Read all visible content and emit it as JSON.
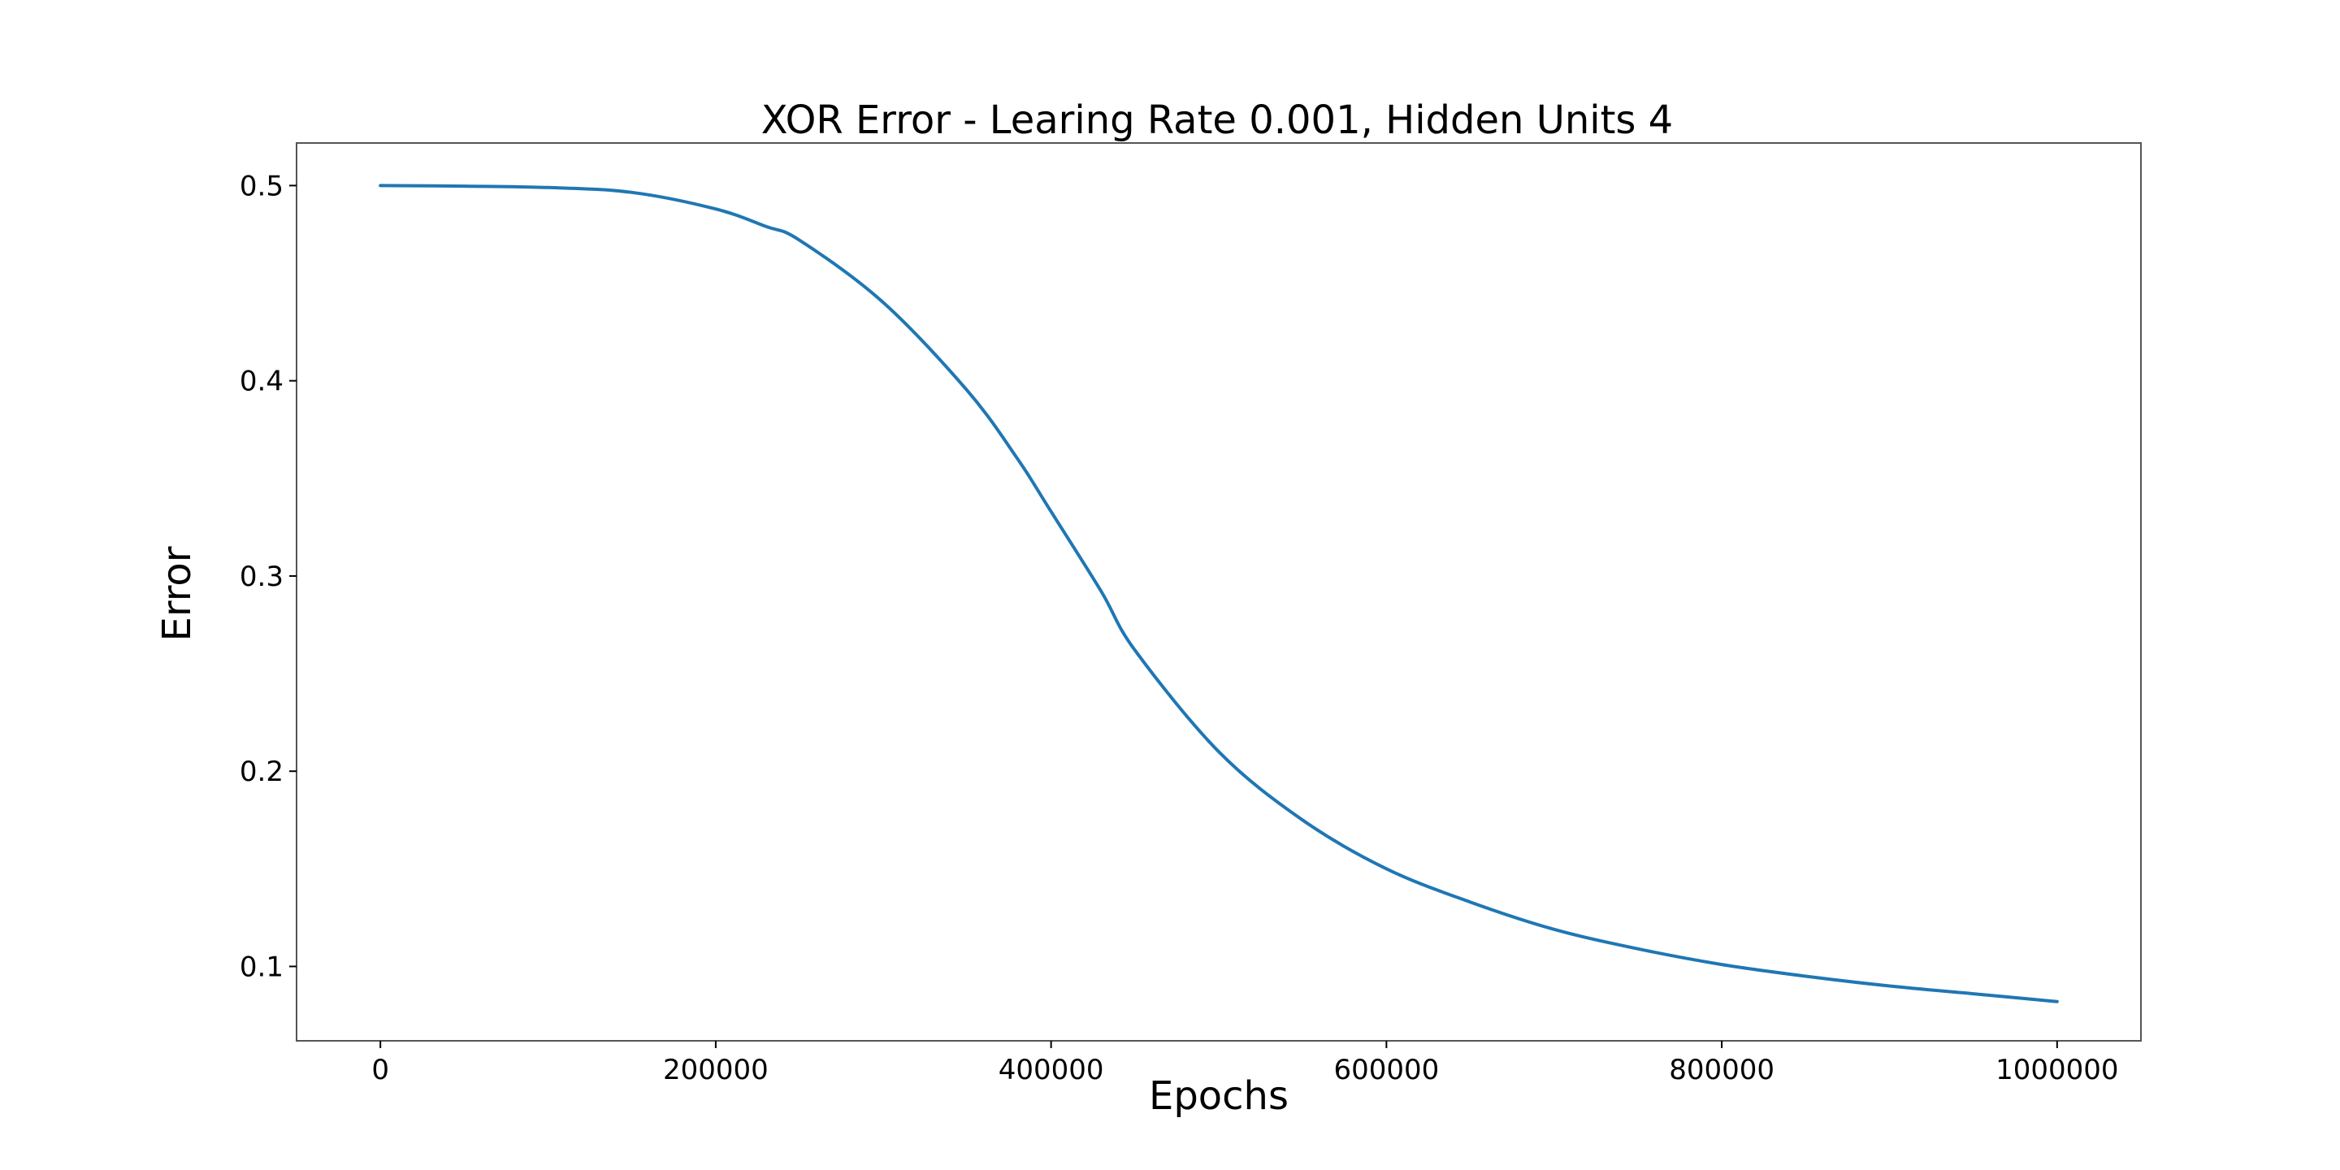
{
  "chart_data": {
    "type": "line",
    "title": "XOR Error - Learing Rate 0.001, Hidden Units 4",
    "xlabel": "Epochs",
    "ylabel": "Error",
    "xlim": [
      -50000,
      1050000
    ],
    "ylim": [
      0.0619,
      0.5218
    ],
    "x_ticks": [
      0,
      200000,
      400000,
      600000,
      800000,
      1000000
    ],
    "y_ticks": [
      0.1,
      0.2,
      0.3,
      0.4,
      0.5
    ],
    "grid": false,
    "legend": "none",
    "series": [
      {
        "color": "#1f77b4",
        "points": [
          [
            0,
            0.5
          ],
          [
            50000,
            0.4997
          ],
          [
            100000,
            0.499
          ],
          [
            150000,
            0.4965
          ],
          [
            200000,
            0.488
          ],
          [
            230000,
            0.479
          ],
          [
            250000,
            0.472
          ],
          [
            300000,
            0.44
          ],
          [
            350000,
            0.395
          ],
          [
            380000,
            0.36
          ],
          [
            400000,
            0.333
          ],
          [
            430000,
            0.292
          ],
          [
            450000,
            0.262
          ],
          [
            500000,
            0.21
          ],
          [
            550000,
            0.175
          ],
          [
            600000,
            0.15
          ],
          [
            650000,
            0.133
          ],
          [
            700000,
            0.119
          ],
          [
            750000,
            0.109
          ],
          [
            800000,
            0.101
          ],
          [
            850000,
            0.095
          ],
          [
            900000,
            0.09
          ],
          [
            950000,
            0.086
          ],
          [
            1000000,
            0.082
          ]
        ]
      }
    ]
  }
}
